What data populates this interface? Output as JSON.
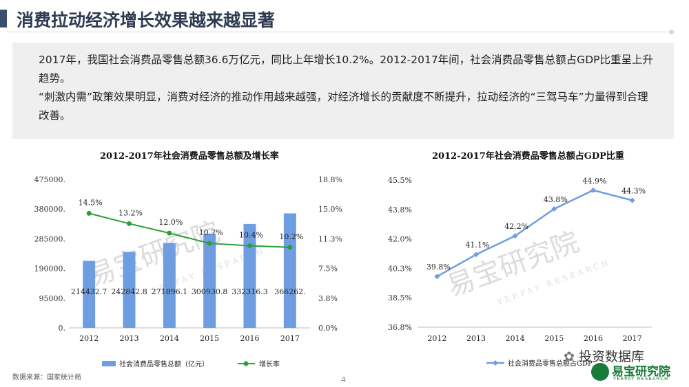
{
  "page": {
    "title": "消费拉动经济增长效果越来越显著",
    "paragraph1": "2017年，我国社会消费品零售总额36.6万亿元，同比上年增长10.2%。2012-2017年间，社会消费品零售总额占GDP比重呈上升趋势。",
    "paragraph2": "“刺激内需”政策效果明显，消费对经济的推动作用越来越强，对经济增长的贡献度不断提升，拉动经济的“三驾马车”力量得到合理改善。",
    "source": "数据来源：国家统计局",
    "page_number": "4",
    "wechat_brand": "投资数据库",
    "logo_text": "易宝研究院",
    "logo_subtext": "YEEPAY RESEARCH",
    "watermark_text": "易宝研究院",
    "watermark_subtext": "YEEPAY RESEARCH",
    "accent_color": "#3a4f6d"
  },
  "chart_data": [
    {
      "type": "bar",
      "title": "2012-2017年社会消费品零售总额及增长率",
      "categories": [
        "2012",
        "2013",
        "2014",
        "2015",
        "2016",
        "2017"
      ],
      "series": [
        {
          "name": "社会消费品零售总额（亿元）",
          "kind": "bar",
          "axis": "left",
          "color": "#6f9ee0",
          "values": [
            214432.7,
            242842.8,
            271896.1,
            300930.8,
            332316.3,
            366262
          ],
          "labels": [
            "214432.7",
            "242842.8",
            "271896.1",
            "300930.8",
            "332316.3",
            "366262."
          ]
        },
        {
          "name": "增长率",
          "kind": "line",
          "axis": "right",
          "color": "#2e9e3a",
          "values": [
            14.5,
            13.2,
            12.0,
            10.7,
            10.4,
            10.2
          ],
          "labels": [
            "14.5%",
            "13.2%",
            "12.0%",
            "10.7%",
            "10.4%",
            "10.2%"
          ]
        }
      ],
      "left_axis": {
        "ylim": [
          0,
          475000
        ],
        "ticks": [
          "0.",
          "95000.",
          "190000.",
          "285000.",
          "380000.",
          "475000."
        ]
      },
      "right_axis": {
        "ylim": [
          0,
          18.8
        ],
        "ticks": [
          "0.0%",
          "3.8%",
          "7.5%",
          "11.3%",
          "15.0%",
          "18.8%"
        ]
      },
      "legend": "bottom"
    },
    {
      "type": "line",
      "title": "2012-2017年社会消费品零售总额占GDP比重",
      "categories": [
        "2012",
        "2013",
        "2014",
        "2015",
        "2016",
        "2017"
      ],
      "series": [
        {
          "name": "社会消费品零售总额占GDP比重",
          "legend_label": "社会消费品零售总额占GDP",
          "color": "#6f9ee0",
          "values": [
            39.8,
            41.1,
            42.2,
            43.8,
            44.9,
            44.3
          ],
          "labels": [
            "39.8%",
            "41.1%",
            "42.2%",
            "43.8%",
            "44.9%",
            "44.3%"
          ]
        }
      ],
      "ylim": [
        36.8,
        45.5
      ],
      "ticks": [
        "36.8%",
        "38.5%",
        "40.3%",
        "42.0%",
        "43.8%",
        "45.5%"
      ],
      "legend": "bottom"
    }
  ]
}
